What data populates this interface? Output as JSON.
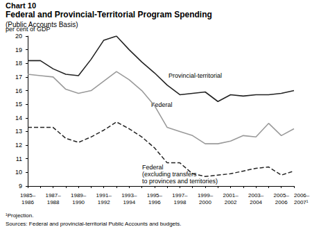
{
  "chart_data": {
    "type": "line",
    "title": "Federal and Provincial-Territorial Program Spending",
    "subtitle": "(Public Accounts Basis)",
    "annotations": {
      "chart_number": "Chart 10",
      "footnote": "¹Projection.",
      "source": "Sources: Federal and provincial-territorial Public Accounts and budgets."
    },
    "y_label": "per cent of GDP",
    "categories": [
      "1985–1986",
      null,
      "1987–1988",
      null,
      "1989–1990",
      null,
      "1991–1992",
      null,
      "1993–1994",
      null,
      "1995–1996",
      null,
      "1997–1998",
      null,
      "1999–2000",
      null,
      "2001–2002",
      null,
      "2003–2004",
      null,
      "2005–2006",
      "2006–2007¹"
    ],
    "series": [
      {
        "name": "Provincial-territorial",
        "color": "#222222",
        "line_style": "solid",
        "values": [
          18.2,
          18.2,
          17.6,
          17.2,
          17.1,
          18.3,
          19.7,
          20.0,
          19.0,
          18.1,
          17.3,
          16.4,
          15.7,
          15.8,
          15.9,
          15.2,
          15.7,
          15.6,
          15.7,
          15.7,
          15.8,
          16.0
        ]
      },
      {
        "name": "Federal",
        "color": "#9a9a9a",
        "line_style": "solid",
        "values": [
          17.2,
          17.1,
          17.0,
          16.1,
          15.8,
          16.0,
          16.7,
          17.4,
          16.8,
          16.0,
          14.9,
          13.3,
          13.0,
          12.7,
          12.1,
          12.1,
          12.3,
          12.7,
          12.6,
          13.6,
          12.7,
          13.2
        ]
      },
      {
        "name": "Federal\n(excluding transfers\nto provinces and territories)",
        "color": "#222222",
        "line_style": "dashed",
        "values": [
          13.3,
          13.3,
          13.3,
          12.5,
          12.2,
          12.6,
          13.1,
          13.7,
          13.2,
          12.6,
          11.8,
          10.7,
          10.7,
          9.9,
          9.7,
          9.8,
          9.9,
          10.1,
          10.3,
          10.4,
          9.8,
          10.1
        ]
      }
    ],
    "ylim": [
      9,
      20
    ],
    "yticks": [
      9,
      10,
      11,
      12,
      13,
      14,
      15,
      16,
      17,
      18,
      19,
      20
    ],
    "grid": false
  }
}
